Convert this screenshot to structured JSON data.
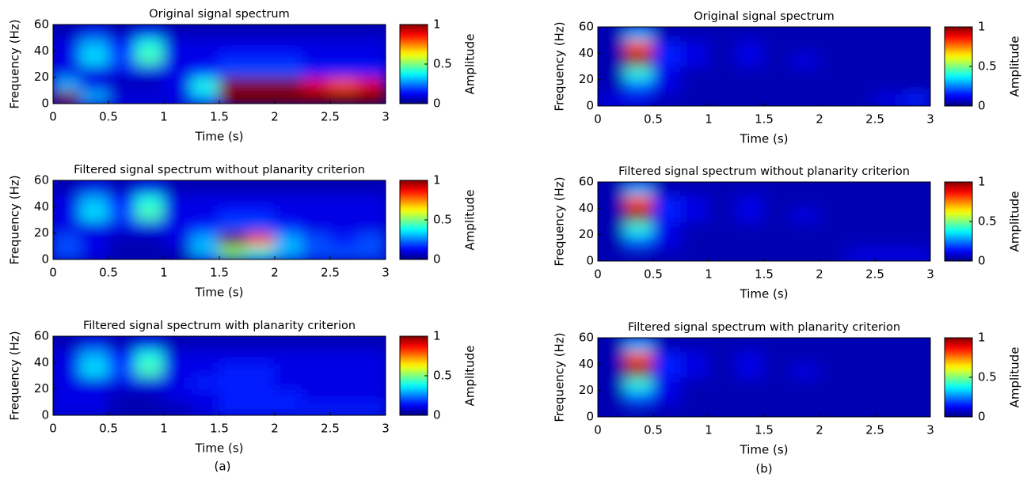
{
  "captions": [
    "(a)",
    "(b)"
  ],
  "chart_data": [
    {
      "type": "heatmap",
      "title": "Original signal spectrum",
      "xlabel": "Time (s)",
      "ylabel": "Frequency (Hz)",
      "colorbar_label": "Amplitude",
      "xlim": [
        0,
        3
      ],
      "xticks": [
        0,
        0.5,
        1,
        1.5,
        2,
        2.5,
        3
      ],
      "ylim": [
        0,
        60
      ],
      "yticks": [
        0,
        20,
        40,
        60
      ],
      "clim": [
        0,
        1
      ],
      "cticks": [
        0,
        0.5,
        1
      ],
      "z": [
        [
          1,
          0.3,
          0.1,
          0.1,
          0.1,
          0.3,
          1,
          1,
          1,
          1,
          1,
          1
        ],
        [
          0.3,
          0.1,
          0.05,
          0.05,
          0.1,
          0.4,
          1,
          1,
          1,
          0.9,
          0.8,
          0.9
        ],
        [
          0.1,
          0.1,
          0.1,
          0.1,
          0.1,
          0.15,
          0.2,
          0.2,
          0.2,
          0.15,
          0.15,
          0.15
        ],
        [
          0.1,
          0.35,
          0.2,
          0.45,
          0.1,
          0.1,
          0.15,
          0.15,
          0.15,
          0.1,
          0.1,
          0.1
        ],
        [
          0.1,
          0.3,
          0.15,
          0.4,
          0.1,
          0.1,
          0.1,
          0.1,
          0.1,
          0.1,
          0.1,
          0.1
        ],
        [
          0.05,
          0.1,
          0.05,
          0.1,
          0.05,
          0.05,
          0.05,
          0.05,
          0.05,
          0.05,
          0.05,
          0.05
        ]
      ]
    },
    {
      "type": "heatmap",
      "title": "Filtered signal spectrum without planarity criterion",
      "xlabel": "Time (s)",
      "ylabel": "Frequency (Hz)",
      "colorbar_label": "Amplitude",
      "xlim": [
        0,
        3
      ],
      "xticks": [
        0,
        0.5,
        1,
        1.5,
        2,
        2.5,
        3
      ],
      "ylim": [
        0,
        60
      ],
      "yticks": [
        0,
        20,
        40,
        60
      ],
      "clim": [
        0,
        1
      ],
      "cticks": [
        0,
        0.5,
        1
      ],
      "z": [
        [
          0.2,
          0.1,
          0.05,
          0.05,
          0.05,
          0.3,
          0.5,
          0.4,
          0.3,
          0.2,
          0.2,
          0.2
        ],
        [
          0.2,
          0.1,
          0.05,
          0.05,
          0.1,
          0.3,
          1,
          0.8,
          0.3,
          0.2,
          0.15,
          0.2
        ],
        [
          0.1,
          0.1,
          0.1,
          0.1,
          0.1,
          0.15,
          0.2,
          0.2,
          0.15,
          0.1,
          0.1,
          0.1
        ],
        [
          0.1,
          0.35,
          0.2,
          0.45,
          0.1,
          0.1,
          0.15,
          0.15,
          0.1,
          0.1,
          0.1,
          0.1
        ],
        [
          0.1,
          0.3,
          0.15,
          0.4,
          0.1,
          0.1,
          0.1,
          0.1,
          0.1,
          0.1,
          0.1,
          0.1
        ],
        [
          0.05,
          0.1,
          0.05,
          0.1,
          0.05,
          0.05,
          0.05,
          0.05,
          0.05,
          0.05,
          0.05,
          0.05
        ]
      ]
    },
    {
      "type": "heatmap",
      "title": "Filtered signal spectrum with planarity criterion",
      "xlabel": "Time (s)",
      "ylabel": "Frequency (Hz)",
      "colorbar_label": "Amplitude",
      "xlim": [
        0,
        3
      ],
      "xticks": [
        0,
        0.5,
        1,
        1.5,
        2,
        2.5,
        3
      ],
      "ylim": [
        0,
        60
      ],
      "yticks": [
        0,
        20,
        40,
        60
      ],
      "clim": [
        0,
        1
      ],
      "cticks": [
        0,
        0.5,
        1
      ],
      "z": [
        [
          0.1,
          0.1,
          0.05,
          0.05,
          0.05,
          0.1,
          0.15,
          0.15,
          0.15,
          0.15,
          0.15,
          0.15
        ],
        [
          0.1,
          0.1,
          0.05,
          0.05,
          0.1,
          0.1,
          0.15,
          0.15,
          0.15,
          0.1,
          0.1,
          0.1
        ],
        [
          0.1,
          0.1,
          0.1,
          0.1,
          0.1,
          0.15,
          0.15,
          0.15,
          0.1,
          0.1,
          0.1,
          0.1
        ],
        [
          0.1,
          0.35,
          0.2,
          0.45,
          0.1,
          0.1,
          0.15,
          0.15,
          0.1,
          0.1,
          0.1,
          0.1
        ],
        [
          0.1,
          0.3,
          0.15,
          0.4,
          0.1,
          0.1,
          0.1,
          0.1,
          0.1,
          0.1,
          0.1,
          0.1
        ],
        [
          0.05,
          0.1,
          0.05,
          0.1,
          0.05,
          0.05,
          0.05,
          0.05,
          0.05,
          0.05,
          0.05,
          0.05
        ]
      ]
    },
    {
      "type": "heatmap",
      "title": "Original signal spectrum",
      "xlabel": "Time (s)",
      "ylabel": "Frequency (Hz)",
      "colorbar_label": "Amplitude",
      "xlim": [
        0,
        3
      ],
      "xticks": [
        0,
        0.5,
        1,
        1.5,
        2,
        2.5,
        3
      ],
      "ylim": [
        0,
        60
      ],
      "yticks": [
        0,
        20,
        40,
        60
      ],
      "clim": [
        0,
        1
      ],
      "cticks": [
        0,
        0.5,
        1
      ],
      "z": [
        [
          0.1,
          0.1,
          0.05,
          0.05,
          0.05,
          0.05,
          0.05,
          0.05,
          0.05,
          0.05,
          0.1,
          0.15
        ],
        [
          0.05,
          0.2,
          0.1,
          0.05,
          0.05,
          0.05,
          0.05,
          0.05,
          0.05,
          0.05,
          0.05,
          0.05
        ],
        [
          0.05,
          0.4,
          0.1,
          0.05,
          0.05,
          0.05,
          0.05,
          0.05,
          0.05,
          0.05,
          0.05,
          0.05
        ],
        [
          0.05,
          1,
          0.15,
          0.1,
          0.05,
          0.1,
          0.05,
          0.1,
          0.05,
          0.05,
          0.05,
          0.05
        ],
        [
          0.05,
          0.8,
          0.15,
          0.1,
          0.05,
          0.1,
          0.05,
          0.05,
          0.05,
          0.05,
          0.05,
          0.05
        ],
        [
          0.05,
          0.3,
          0.05,
          0.05,
          0.05,
          0.05,
          0.05,
          0.05,
          0.05,
          0.05,
          0.05,
          0.05
        ]
      ]
    },
    {
      "type": "heatmap",
      "title": "Filtered signal spectrum without planarity criterion",
      "xlabel": "Time (s)",
      "ylabel": "Frequency (Hz)",
      "colorbar_label": "Amplitude",
      "xlim": [
        0,
        3
      ],
      "xticks": [
        0,
        0.5,
        1,
        1.5,
        2,
        2.5,
        3
      ],
      "ylim": [
        0,
        60
      ],
      "yticks": [
        0,
        20,
        40,
        60
      ],
      "clim": [
        0,
        1
      ],
      "cticks": [
        0,
        0.5,
        1
      ],
      "z": [
        [
          0.05,
          0.05,
          0.05,
          0.05,
          0.05,
          0.05,
          0.05,
          0.05,
          0.05,
          0.1,
          0.1,
          0.1
        ],
        [
          0.05,
          0.2,
          0.1,
          0.05,
          0.05,
          0.05,
          0.05,
          0.05,
          0.05,
          0.05,
          0.05,
          0.05
        ],
        [
          0.05,
          0.4,
          0.1,
          0.05,
          0.05,
          0.05,
          0.05,
          0.05,
          0.05,
          0.05,
          0.05,
          0.05
        ],
        [
          0.05,
          1,
          0.15,
          0.1,
          0.05,
          0.1,
          0.05,
          0.1,
          0.05,
          0.05,
          0.05,
          0.05
        ],
        [
          0.05,
          0.8,
          0.15,
          0.1,
          0.05,
          0.1,
          0.05,
          0.05,
          0.05,
          0.05,
          0.05,
          0.05
        ],
        [
          0.05,
          0.3,
          0.05,
          0.05,
          0.05,
          0.05,
          0.05,
          0.05,
          0.05,
          0.05,
          0.05,
          0.05
        ]
      ]
    },
    {
      "type": "heatmap",
      "title": "Filtered signal spectrum with planarity criterion",
      "xlabel": "Time (s)",
      "ylabel": "Frequency (Hz)",
      "colorbar_label": "Amplitude",
      "xlim": [
        0,
        3
      ],
      "xticks": [
        0,
        0.5,
        1,
        1.5,
        2,
        2.5,
        3
      ],
      "ylim": [
        0,
        60
      ],
      "yticks": [
        0,
        20,
        40,
        60
      ],
      "clim": [
        0,
        1
      ],
      "cticks": [
        0,
        0.5,
        1
      ],
      "z": [
        [
          0.05,
          0.05,
          0.05,
          0.05,
          0.05,
          0.05,
          0.05,
          0.05,
          0.05,
          0.05,
          0.05,
          0.05
        ],
        [
          0.05,
          0.2,
          0.1,
          0.05,
          0.05,
          0.05,
          0.05,
          0.05,
          0.05,
          0.05,
          0.05,
          0.05
        ],
        [
          0.05,
          0.4,
          0.1,
          0.05,
          0.05,
          0.05,
          0.05,
          0.05,
          0.05,
          0.05,
          0.05,
          0.05
        ],
        [
          0.05,
          1,
          0.15,
          0.1,
          0.05,
          0.1,
          0.05,
          0.1,
          0.05,
          0.05,
          0.05,
          0.05
        ],
        [
          0.05,
          0.8,
          0.15,
          0.1,
          0.05,
          0.1,
          0.05,
          0.05,
          0.05,
          0.05,
          0.05,
          0.05
        ],
        [
          0.05,
          0.3,
          0.05,
          0.05,
          0.05,
          0.05,
          0.05,
          0.05,
          0.05,
          0.05,
          0.05,
          0.05
        ]
      ]
    }
  ]
}
